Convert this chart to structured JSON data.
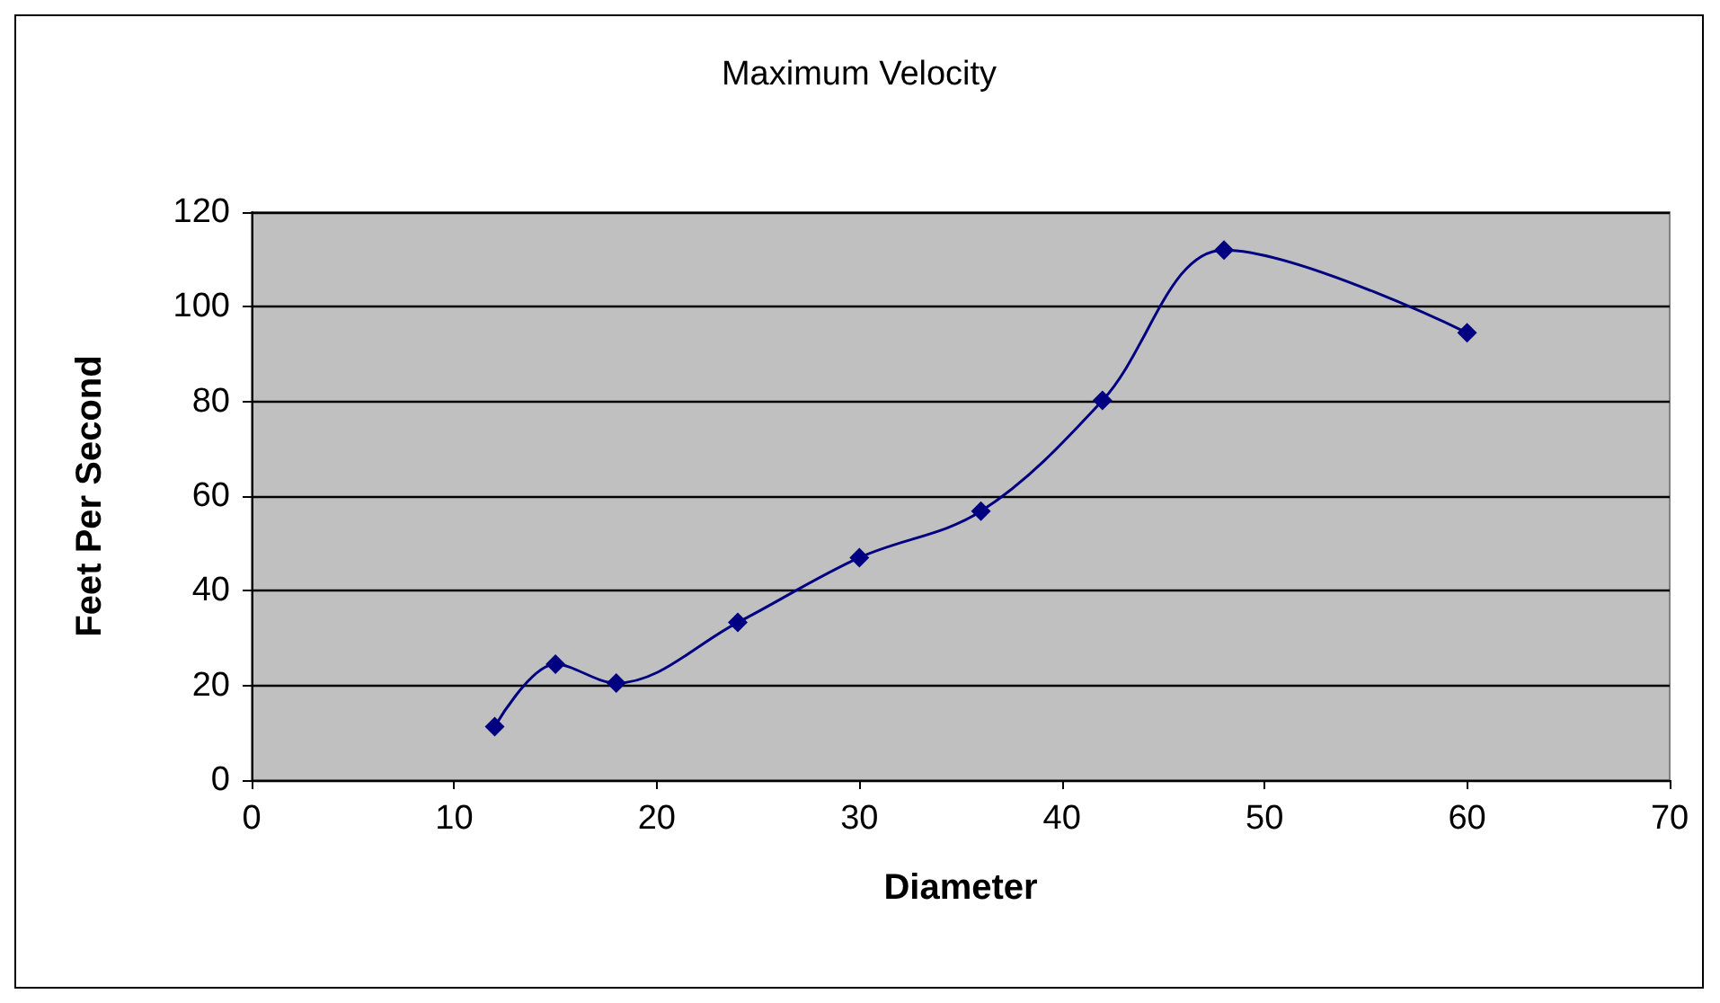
{
  "chart_data": {
    "type": "line",
    "title": "Maximum Velocity",
    "xlabel": "Diameter",
    "ylabel": "Feet Per Second",
    "x": [
      12,
      15,
      18,
      24,
      30,
      36,
      42,
      48,
      60
    ],
    "series": [
      {
        "color": "#000080",
        "values": [
          11.3,
          24.5,
          20.5,
          33.3,
          47,
          56.8,
          80.2,
          112,
          94.5
        ]
      }
    ],
    "xlim": [
      0,
      70
    ],
    "xticks": [
      0,
      10,
      20,
      30,
      40,
      50,
      60,
      70
    ],
    "ylim": [
      0,
      120
    ],
    "yticks": [
      0,
      20,
      40,
      60,
      80,
      100,
      120
    ],
    "grid": "y",
    "marker": "diamond",
    "line_style": "solid"
  }
}
